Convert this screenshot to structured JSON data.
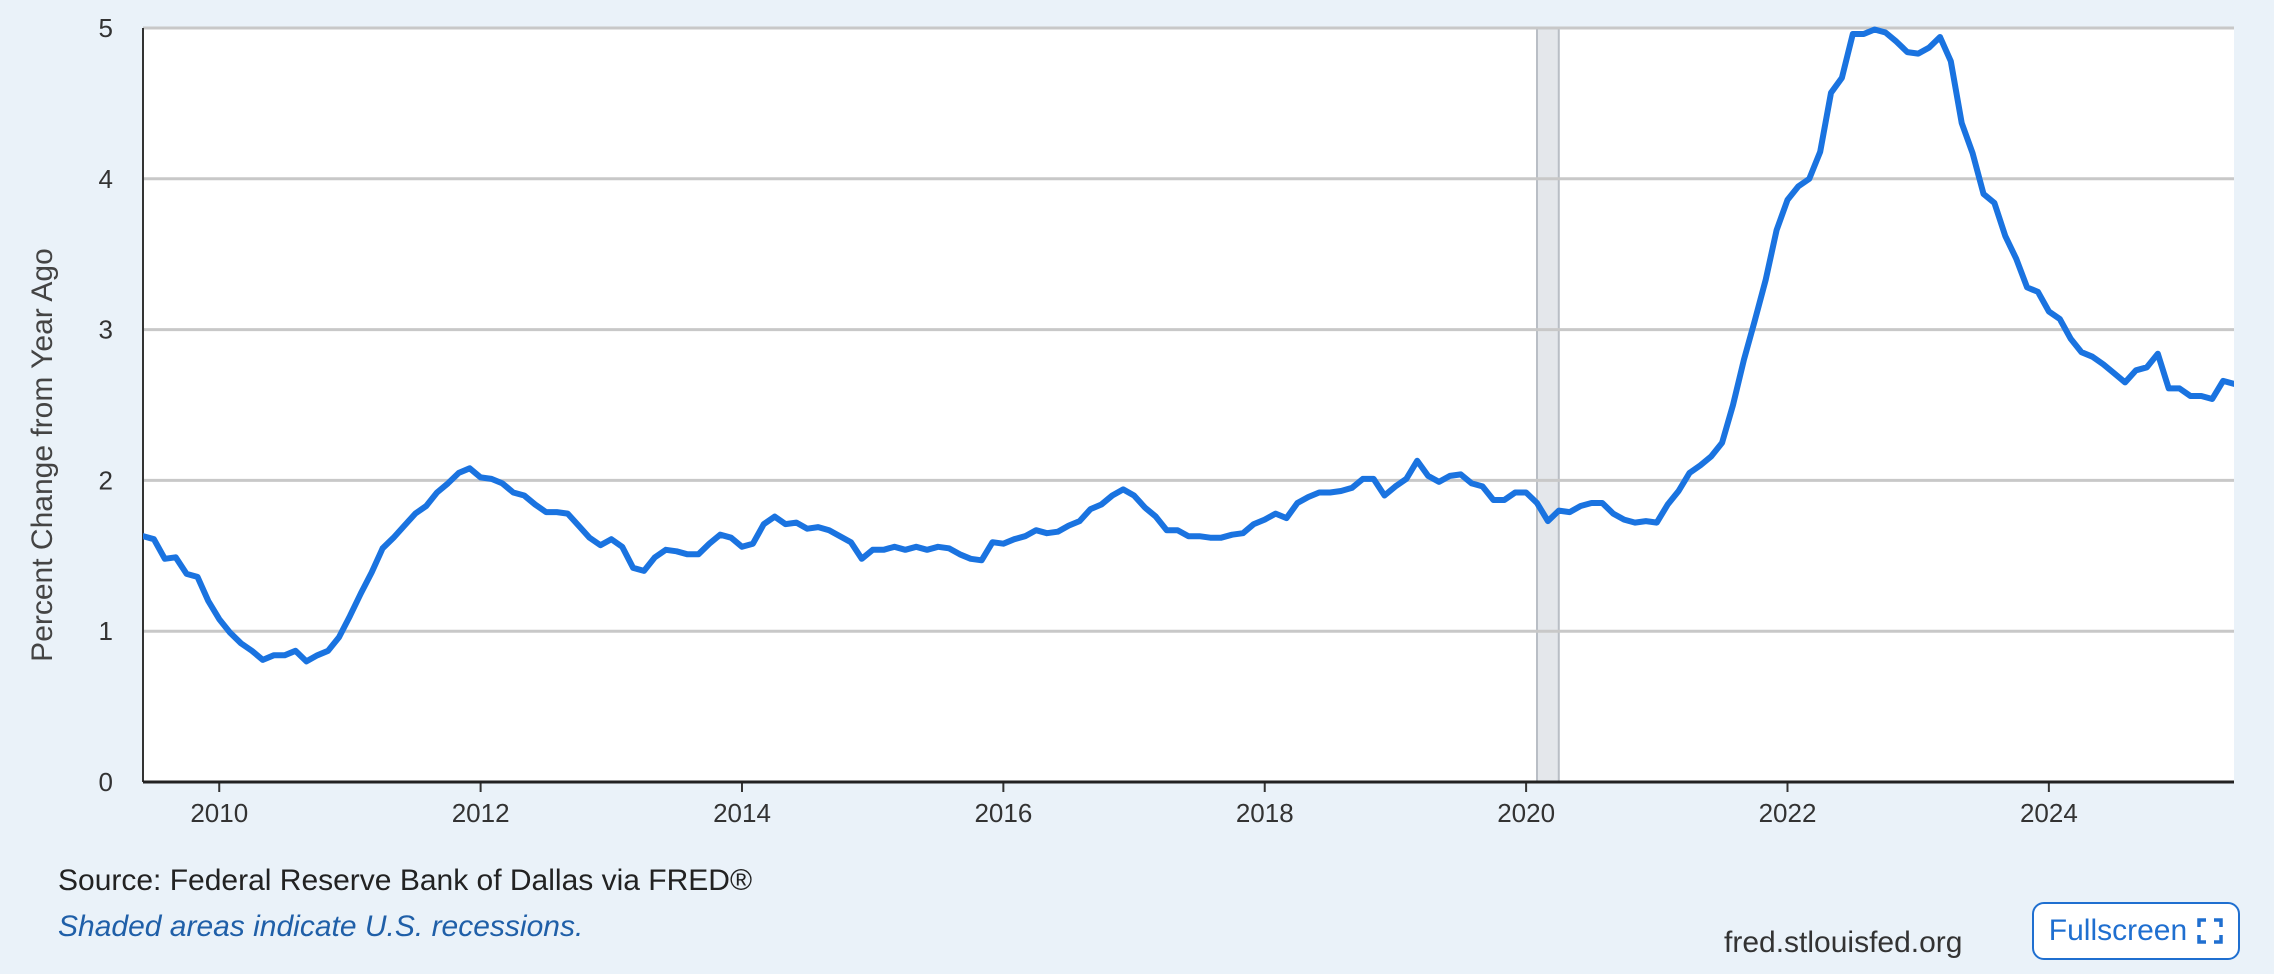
{
  "chart_data": {
    "type": "line",
    "title": "",
    "xlabel": "",
    "ylabel": "Percent Change from Year Ago",
    "xlim": [
      "2009-06",
      "2025-06"
    ],
    "ylim": [
      0,
      5
    ],
    "x_ticks": [
      "2010",
      "2012",
      "2014",
      "2016",
      "2018",
      "2020",
      "2022",
      "2024"
    ],
    "y_ticks": [
      "0",
      "1",
      "2",
      "3",
      "4",
      "5"
    ],
    "grid": true,
    "legend": "none",
    "recessions": [
      {
        "start": "2020-02",
        "end": "2020-04"
      }
    ],
    "series": [
      {
        "color": "#1a73e0",
        "points": [
          [
            "2009-06",
            1.63
          ],
          [
            "2009-07",
            1.61
          ],
          [
            "2009-08",
            1.48
          ],
          [
            "2009-09",
            1.49
          ],
          [
            "2009-10",
            1.38
          ],
          [
            "2009-11",
            1.36
          ],
          [
            "2009-12",
            1.2
          ],
          [
            "2010-01",
            1.08
          ],
          [
            "2010-02",
            0.99
          ],
          [
            "2010-03",
            0.92
          ],
          [
            "2010-04",
            0.87
          ],
          [
            "2010-05",
            0.81
          ],
          [
            "2010-06",
            0.84
          ],
          [
            "2010-07",
            0.84
          ],
          [
            "2010-08",
            0.87
          ],
          [
            "2010-09",
            0.8
          ],
          [
            "2010-10",
            0.84
          ],
          [
            "2010-11",
            0.87
          ],
          [
            "2010-12",
            0.96
          ],
          [
            "2011-01",
            1.1
          ],
          [
            "2011-02",
            1.25
          ],
          [
            "2011-03",
            1.39
          ],
          [
            "2011-04",
            1.55
          ],
          [
            "2011-05",
            1.62
          ],
          [
            "2011-06",
            1.7
          ],
          [
            "2011-07",
            1.78
          ],
          [
            "2011-08",
            1.83
          ],
          [
            "2011-09",
            1.92
          ],
          [
            "2011-10",
            1.98
          ],
          [
            "2011-11",
            2.05
          ],
          [
            "2011-12",
            2.08
          ],
          [
            "2012-01",
            2.02
          ],
          [
            "2012-02",
            2.01
          ],
          [
            "2012-03",
            1.98
          ],
          [
            "2012-04",
            1.92
          ],
          [
            "2012-05",
            1.9
          ],
          [
            "2012-06",
            1.84
          ],
          [
            "2012-07",
            1.79
          ],
          [
            "2012-08",
            1.79
          ],
          [
            "2012-09",
            1.78
          ],
          [
            "2012-10",
            1.7
          ],
          [
            "2012-11",
            1.62
          ],
          [
            "2012-12",
            1.57
          ],
          [
            "2013-01",
            1.61
          ],
          [
            "2013-02",
            1.56
          ],
          [
            "2013-03",
            1.42
          ],
          [
            "2013-04",
            1.4
          ],
          [
            "2013-05",
            1.49
          ],
          [
            "2013-06",
            1.54
          ],
          [
            "2013-07",
            1.53
          ],
          [
            "2013-08",
            1.51
          ],
          [
            "2013-09",
            1.51
          ],
          [
            "2013-10",
            1.58
          ],
          [
            "2013-11",
            1.64
          ],
          [
            "2013-12",
            1.62
          ],
          [
            "2014-01",
            1.56
          ],
          [
            "2014-02",
            1.58
          ],
          [
            "2014-03",
            1.71
          ],
          [
            "2014-04",
            1.76
          ],
          [
            "2014-05",
            1.71
          ],
          [
            "2014-06",
            1.72
          ],
          [
            "2014-07",
            1.68
          ],
          [
            "2014-08",
            1.69
          ],
          [
            "2014-09",
            1.67
          ],
          [
            "2014-10",
            1.63
          ],
          [
            "2014-11",
            1.59
          ],
          [
            "2014-12",
            1.48
          ],
          [
            "2015-01",
            1.54
          ],
          [
            "2015-02",
            1.54
          ],
          [
            "2015-03",
            1.56
          ],
          [
            "2015-04",
            1.54
          ],
          [
            "2015-05",
            1.56
          ],
          [
            "2015-06",
            1.54
          ],
          [
            "2015-07",
            1.56
          ],
          [
            "2015-08",
            1.55
          ],
          [
            "2015-09",
            1.51
          ],
          [
            "2015-10",
            1.48
          ],
          [
            "2015-11",
            1.47
          ],
          [
            "2015-12",
            1.59
          ],
          [
            "2016-01",
            1.58
          ],
          [
            "2016-02",
            1.61
          ],
          [
            "2016-03",
            1.63
          ],
          [
            "2016-04",
            1.67
          ],
          [
            "2016-05",
            1.65
          ],
          [
            "2016-06",
            1.66
          ],
          [
            "2016-07",
            1.7
          ],
          [
            "2016-08",
            1.73
          ],
          [
            "2016-09",
            1.81
          ],
          [
            "2016-10",
            1.84
          ],
          [
            "2016-11",
            1.9
          ],
          [
            "2016-12",
            1.94
          ],
          [
            "2017-01",
            1.9
          ],
          [
            "2017-02",
            1.82
          ],
          [
            "2017-03",
            1.76
          ],
          [
            "2017-04",
            1.67
          ],
          [
            "2017-05",
            1.67
          ],
          [
            "2017-06",
            1.63
          ],
          [
            "2017-07",
            1.63
          ],
          [
            "2017-08",
            1.62
          ],
          [
            "2017-09",
            1.62
          ],
          [
            "2017-10",
            1.64
          ],
          [
            "2017-11",
            1.65
          ],
          [
            "2017-12",
            1.71
          ],
          [
            "2018-01",
            1.74
          ],
          [
            "2018-02",
            1.78
          ],
          [
            "2018-03",
            1.75
          ],
          [
            "2018-04",
            1.85
          ],
          [
            "2018-05",
            1.89
          ],
          [
            "2018-06",
            1.92
          ],
          [
            "2018-07",
            1.92
          ],
          [
            "2018-08",
            1.93
          ],
          [
            "2018-09",
            1.95
          ],
          [
            "2018-10",
            2.01
          ],
          [
            "2018-11",
            2.01
          ],
          [
            "2018-12",
            1.9
          ],
          [
            "2019-01",
            1.96
          ],
          [
            "2019-02",
            2.01
          ],
          [
            "2019-03",
            2.13
          ],
          [
            "2019-04",
            2.03
          ],
          [
            "2019-05",
            1.99
          ],
          [
            "2019-06",
            2.03
          ],
          [
            "2019-07",
            2.04
          ],
          [
            "2019-08",
            1.98
          ],
          [
            "2019-09",
            1.96
          ],
          [
            "2019-10",
            1.87
          ],
          [
            "2019-11",
            1.87
          ],
          [
            "2019-12",
            1.92
          ],
          [
            "2020-01",
            1.92
          ],
          [
            "2020-02",
            1.85
          ],
          [
            "2020-03",
            1.73
          ],
          [
            "2020-04",
            1.8
          ],
          [
            "2020-05",
            1.79
          ],
          [
            "2020-06",
            1.83
          ],
          [
            "2020-07",
            1.85
          ],
          [
            "2020-08",
            1.85
          ],
          [
            "2020-09",
            1.78
          ],
          [
            "2020-10",
            1.74
          ],
          [
            "2020-11",
            1.72
          ],
          [
            "2020-12",
            1.73
          ],
          [
            "2021-01",
            1.72
          ],
          [
            "2021-02",
            1.84
          ],
          [
            "2021-03",
            1.93
          ],
          [
            "2021-04",
            2.05
          ],
          [
            "2021-05",
            2.1
          ],
          [
            "2021-06",
            2.16
          ],
          [
            "2021-07",
            2.25
          ],
          [
            "2021-08",
            2.5
          ],
          [
            "2021-09",
            2.8
          ],
          [
            "2021-10",
            3.06
          ],
          [
            "2021-11",
            3.33
          ],
          [
            "2021-12",
            3.66
          ],
          [
            "2022-01",
            3.86
          ],
          [
            "2022-02",
            3.95
          ],
          [
            "2022-03",
            4.0
          ],
          [
            "2022-04",
            4.18
          ],
          [
            "2022-05",
            4.57
          ],
          [
            "2022-06",
            4.67
          ],
          [
            "2022-07",
            4.96
          ],
          [
            "2022-08",
            4.96
          ],
          [
            "2022-09",
            4.99
          ],
          [
            "2022-10",
            4.97
          ],
          [
            "2022-11",
            4.91
          ],
          [
            "2022-12",
            4.84
          ],
          [
            "2023-01",
            4.83
          ],
          [
            "2023-02",
            4.87
          ],
          [
            "2023-03",
            4.94
          ],
          [
            "2023-04",
            4.78
          ],
          [
            "2023-05",
            4.37
          ],
          [
            "2023-06",
            4.17
          ],
          [
            "2023-07",
            3.9
          ],
          [
            "2023-08",
            3.84
          ],
          [
            "2023-09",
            3.62
          ],
          [
            "2023-10",
            3.47
          ],
          [
            "2023-11",
            3.28
          ],
          [
            "2023-12",
            3.25
          ],
          [
            "2024-01",
            3.12
          ],
          [
            "2024-02",
            3.07
          ],
          [
            "2024-03",
            2.94
          ],
          [
            "2024-04",
            2.85
          ],
          [
            "2024-05",
            2.82
          ],
          [
            "2024-06",
            2.77
          ],
          [
            "2024-07",
            2.71
          ],
          [
            "2024-08",
            2.65
          ],
          [
            "2024-09",
            2.73
          ],
          [
            "2024-10",
            2.75
          ],
          [
            "2024-11",
            2.84
          ],
          [
            "2024-12",
            2.61
          ],
          [
            "2025-01",
            2.61
          ],
          [
            "2025-02",
            2.56
          ],
          [
            "2025-03",
            2.56
          ],
          [
            "2025-04",
            2.54
          ],
          [
            "2025-05",
            2.66
          ],
          [
            "2025-06",
            2.64
          ]
        ]
      }
    ]
  },
  "footer": {
    "source": "Source: Federal Reserve Bank of Dallas via FRED®",
    "note": "Shaded areas indicate U.S. recessions.",
    "site": "fred.stlouisfed.org",
    "fullscreen_label": "Fullscreen",
    "fullscreen_icon": "fullscreen-icon"
  }
}
